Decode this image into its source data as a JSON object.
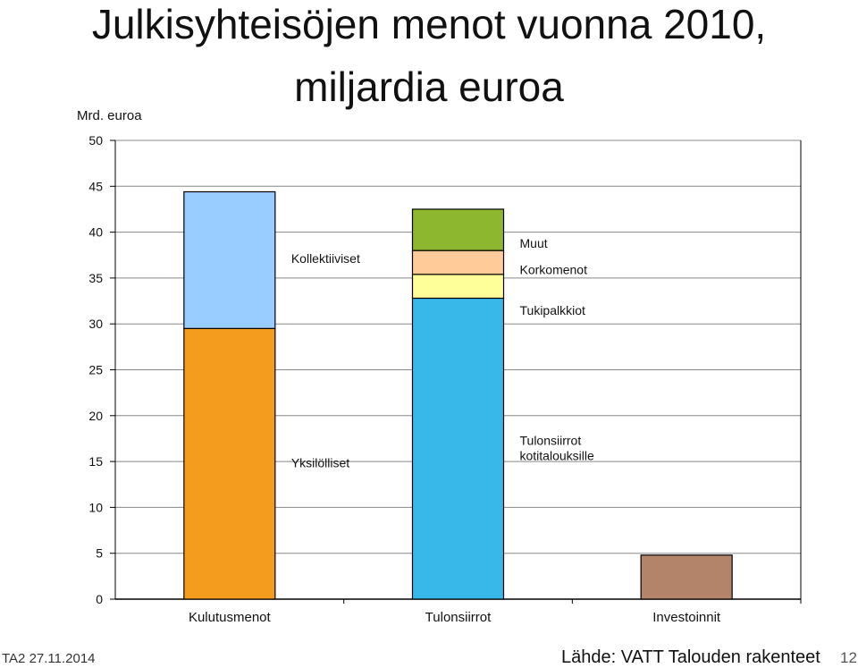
{
  "slide": {
    "title_line1": "Julkisyhteisöjen menot vuonna 2010,",
    "title_line2": "miljardia euroa",
    "footer_left": "TA2 27.11.2014",
    "footer_source": "Lähde: VATT Talouden rakenteet",
    "page_number": "12"
  },
  "chart_data": {
    "type": "bar",
    "stacked": true,
    "ylabel": "Mrd. euroa",
    "ylim": [
      0,
      50
    ],
    "yticks": [
      0,
      5,
      10,
      15,
      20,
      25,
      30,
      35,
      40,
      45,
      50
    ],
    "grid": true,
    "categories": [
      "Kulutusmenot",
      "Tulonsiirrot",
      "Investoinnit"
    ],
    "series": [
      {
        "name": "Yksilölliset",
        "color": "#f39c1e",
        "values": [
          29.5,
          0,
          0
        ]
      },
      {
        "name": "Kollektiiviset",
        "color": "#99ccff",
        "values": [
          14.9,
          0,
          0
        ]
      },
      {
        "name": "Tulonsiirrot kotitalouksille",
        "color": "#38b8e8",
        "values": [
          0,
          32.8,
          0
        ]
      },
      {
        "name": "Tukipalkkiot",
        "color": "#ffff99",
        "values": [
          0,
          2.6,
          0
        ]
      },
      {
        "name": "Korkomenot",
        "color": "#ffcc99",
        "values": [
          0,
          2.6,
          0
        ]
      },
      {
        "name": "Muut",
        "color": "#8db72e",
        "values": [
          0,
          4.5,
          0
        ]
      },
      {
        "color": "#b4846a",
        "values": [
          0,
          0,
          4.8
        ]
      }
    ],
    "annotations": [
      {
        "text": "Yksilölliset",
        "series": 0,
        "category": 0
      },
      {
        "text": "Kollektiiviset",
        "series": 1,
        "category": 0
      },
      {
        "text": "Tulonsiirrot kotitalouksille",
        "series": 2,
        "category": 1
      },
      {
        "text": "Tukipalkkiot",
        "series": 3,
        "category": 1
      },
      {
        "text": "Korkomenot",
        "series": 4,
        "category": 1
      },
      {
        "text": "Muut",
        "series": 5,
        "category": 1
      }
    ]
  }
}
